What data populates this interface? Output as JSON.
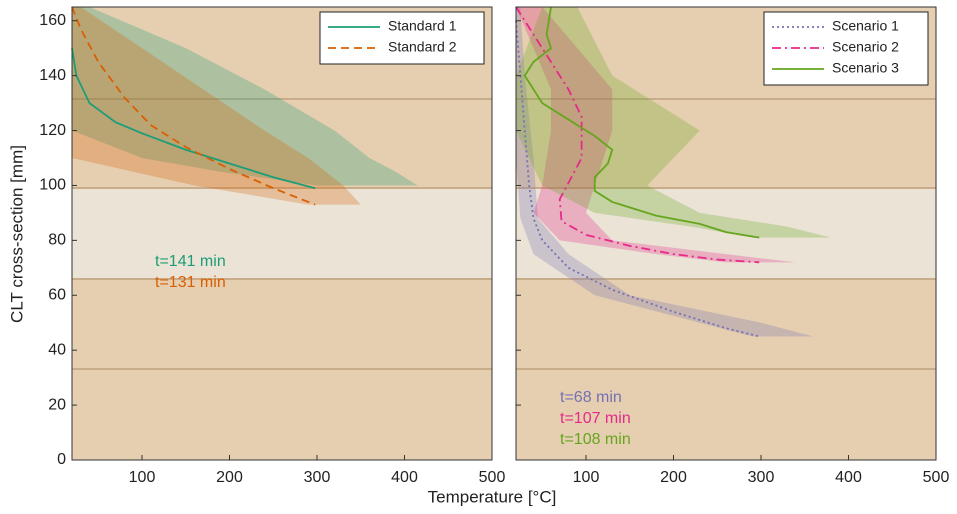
{
  "chart_data": [
    {
      "type": "line",
      "ylabel": "CLT cross-section [mm]",
      "xlabel": "Temperature [°C]",
      "xlim": [
        20,
        500
      ],
      "ylim": [
        0,
        165
      ],
      "xticks": [
        100,
        200,
        300,
        400,
        500
      ],
      "yticks": [
        0,
        20,
        40,
        60,
        80,
        100,
        120,
        140,
        160
      ],
      "show_ytick_labels": true,
      "legend": "upper right",
      "series": [
        {
          "name": "Standard 1",
          "color": "#1b9e77",
          "dash": "solid",
          "x": [
            20,
            25,
            40,
            70,
            100,
            150,
            200,
            250,
            298
          ],
          "y": [
            150,
            140,
            130,
            123,
            119,
            113,
            108,
            103,
            99
          ],
          "band": {
            "y": [
              165,
              150,
              135,
              120,
              110,
              105,
              100
            ],
            "low": [
              20,
              20,
              20,
              20,
              100,
              190,
              300
            ],
            "high": [
              40,
              150,
              240,
              320,
              360,
              390,
              415
            ]
          }
        },
        {
          "name": "Standard 2",
          "color": "#d95f02",
          "dash": "dashed",
          "x": [
            20,
            30,
            50,
            80,
            110,
            150,
            200,
            250,
            298
          ],
          "y": [
            165,
            157,
            145,
            132,
            122,
            114,
            106,
            99,
            93
          ],
          "band": {
            "y": [
              165,
              150,
              135,
              120,
              110,
              100,
              93
            ],
            "low": [
              20,
              20,
              20,
              20,
              20,
              160,
              290
            ],
            "high": [
              30,
              100,
              170,
              240,
              290,
              330,
              350
            ]
          }
        }
      ],
      "annotations": [
        {
          "text": "t=141 min",
          "color": "#1b9e77"
        },
        {
          "text": "t=131 min",
          "color": "#d95f02"
        }
      ]
    },
    {
      "type": "line",
      "xlim": [
        20,
        500
      ],
      "ylim": [
        0,
        165
      ],
      "xticks": [
        100,
        200,
        300,
        400,
        500
      ],
      "yticks": [
        0,
        20,
        40,
        60,
        80,
        100,
        120,
        140,
        160
      ],
      "show_ytick_labels": false,
      "legend": "upper right",
      "series": [
        {
          "name": "Scenario 1",
          "color": "#7570b3",
          "dash": "dotted",
          "x": [
            20,
            25,
            30,
            35,
            40,
            50,
            80,
            130,
            200,
            260,
            298
          ],
          "y": [
            160,
            140,
            120,
            100,
            88,
            80,
            70,
            62,
            54,
            48,
            45
          ],
          "band": {
            "y": [
              165,
              140,
              110,
              88,
              75,
              60,
              50,
              45
            ],
            "low": [
              20,
              20,
              20,
              25,
              40,
              110,
              230,
              290
            ],
            "high": [
              25,
              30,
              40,
              45,
              80,
              150,
              300,
              360
            ]
          }
        },
        {
          "name": "Scenario 2",
          "color": "#e7298a",
          "dash": "dashdot",
          "x": [
            20,
            50,
            80,
            95,
            95,
            70,
            72,
            100,
            150,
            200,
            250,
            298
          ],
          "y": [
            165,
            150,
            135,
            125,
            110,
            95,
            87,
            82,
            78,
            75,
            73,
            72
          ],
          "band": {
            "y": [
              165,
              150,
              135,
              120,
              100,
              90,
              80,
              75,
              72
            ],
            "low": [
              20,
              40,
              60,
              60,
              50,
              40,
              70,
              180,
              260
            ],
            "high": [
              50,
              90,
              130,
              130,
              110,
              100,
              130,
              260,
              340
            ]
          }
        },
        {
          "name": "Scenario 3",
          "color": "#66a61e",
          "dash": "solid",
          "x": [
            60,
            55,
            60,
            40,
            30,
            50,
            80,
            110,
            130,
            125,
            110,
            110,
            130,
            180,
            230,
            260,
            298
          ],
          "y": [
            165,
            155,
            150,
            145,
            140,
            130,
            124,
            118,
            113,
            108,
            103,
            98,
            94,
            89,
            86,
            83,
            81
          ],
          "band": {
            "y": [
              165,
              140,
              120,
              100,
              90,
              85,
              81
            ],
            "low": [
              50,
              20,
              20,
              50,
              110,
              220,
              290
            ],
            "high": [
              90,
              130,
              230,
              170,
              230,
              330,
              380
            ]
          }
        }
      ],
      "annotations": [
        {
          "text": "t=68 min",
          "color": "#7570b3"
        },
        {
          "text": "t=107 min",
          "color": "#e7298a"
        },
        {
          "text": "t=108 min",
          "color": "#66a61e"
        }
      ]
    }
  ]
}
